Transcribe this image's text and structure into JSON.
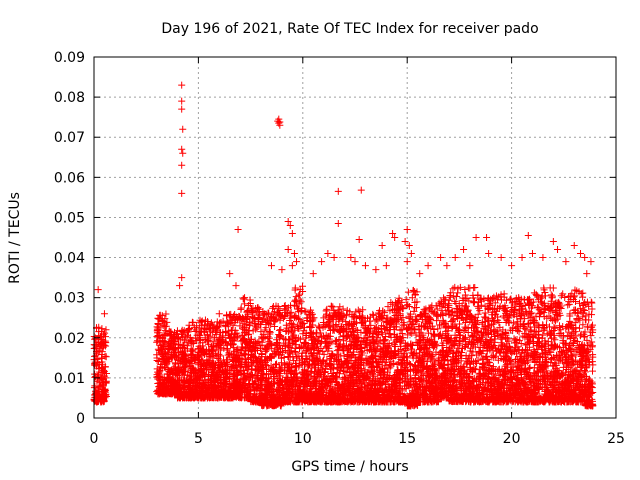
{
  "chart_data": {
    "type": "scatter",
    "title": "Day 196 of 2021, Rate Of TEC Index for receiver pado",
    "xlabel": "GPS time / hours",
    "ylabel": "ROTI / TECUs",
    "xlim": [
      0,
      25
    ],
    "ylim": [
      0,
      0.09
    ],
    "xticks": [
      0,
      5,
      10,
      15,
      20,
      25
    ],
    "xtick_labels": [
      "0",
      "5",
      "10",
      "15",
      "20",
      "25"
    ],
    "yticks": [
      0,
      0.01,
      0.02,
      0.03,
      0.04,
      0.05,
      0.06,
      0.07,
      0.08,
      0.09
    ],
    "ytick_labels": [
      "0",
      "0.01",
      "0.02",
      "0.03",
      "0.04",
      "0.05",
      "0.06",
      "0.07",
      "0.08",
      "0.09"
    ],
    "grid": true,
    "marker": "plus",
    "color": "#ff0000",
    "x_bins": [
      0,
      0.5,
      1,
      1.5,
      2,
      2.5,
      3,
      3.5,
      4,
      4.5,
      5,
      5.5,
      6,
      6.5,
      7,
      7.5,
      8,
      8.5,
      9,
      9.5,
      10,
      10.5,
      11,
      11.5,
      12,
      12.5,
      13,
      13.5,
      14,
      14.5,
      15,
      15.5,
      16,
      16.5,
      17,
      17.5,
      18,
      18.5,
      19,
      19.5,
      20,
      20.5,
      21,
      21.5,
      22,
      22.5,
      23,
      23.5,
      24
    ],
    "dense_band_low": [
      0.004,
      0.005,
      null,
      null,
      null,
      null,
      0.006,
      0.006,
      0.005,
      0.005,
      0.005,
      0.005,
      0.005,
      0.005,
      0.005,
      0.004,
      0.003,
      0.003,
      0.004,
      0.004,
      0.004,
      0.004,
      0.004,
      0.004,
      0.004,
      0.004,
      0.004,
      0.004,
      0.004,
      0.004,
      0.003,
      0.004,
      0.004,
      0.005,
      0.004,
      0.004,
      0.004,
      0.004,
      0.004,
      0.004,
      0.004,
      0.004,
      0.004,
      0.004,
      0.004,
      0.004,
      0.004,
      0.003,
      0.004
    ],
    "dense_band_high": [
      0.023,
      0.022,
      null,
      null,
      null,
      null,
      0.026,
      0.022,
      0.022,
      0.024,
      0.025,
      0.024,
      0.026,
      0.026,
      0.03,
      0.028,
      0.027,
      0.028,
      0.029,
      0.033,
      0.027,
      0.025,
      0.028,
      0.028,
      0.027,
      0.027,
      0.026,
      0.028,
      0.029,
      0.03,
      0.032,
      0.028,
      0.028,
      0.03,
      0.033,
      0.033,
      0.033,
      0.03,
      0.031,
      0.031,
      0.03,
      0.03,
      0.032,
      0.033,
      0.031,
      0.031,
      0.032,
      0.029,
      0.027
    ],
    "sparse_points": [
      [
        0.2,
        0.032
      ],
      [
        0.5,
        0.026
      ],
      [
        4.2,
        0.083
      ],
      [
        4.2,
        0.079
      ],
      [
        4.2,
        0.077
      ],
      [
        4.25,
        0.072
      ],
      [
        4.2,
        0.067
      ],
      [
        4.25,
        0.066
      ],
      [
        4.2,
        0.063
      ],
      [
        4.2,
        0.056
      ],
      [
        4.1,
        0.033
      ],
      [
        4.2,
        0.035
      ],
      [
        6.0,
        0.026
      ],
      [
        6.5,
        0.036
      ],
      [
        6.8,
        0.033
      ],
      [
        6.9,
        0.047
      ],
      [
        8.85,
        0.0745
      ],
      [
        8.9,
        0.0738
      ],
      [
        8.8,
        0.074
      ],
      [
        8.9,
        0.073
      ],
      [
        8.85,
        0.0735
      ],
      [
        8.5,
        0.038
      ],
      [
        9.0,
        0.037
      ],
      [
        9.3,
        0.049
      ],
      [
        9.4,
        0.048
      ],
      [
        9.5,
        0.046
      ],
      [
        9.6,
        0.041
      ],
      [
        9.7,
        0.039
      ],
      [
        9.3,
        0.042
      ],
      [
        9.5,
        0.038
      ],
      [
        10.5,
        0.036
      ],
      [
        10.9,
        0.039
      ],
      [
        11.2,
        0.041
      ],
      [
        11.5,
        0.04
      ],
      [
        11.7,
        0.0485
      ],
      [
        11.7,
        0.0565
      ],
      [
        12.3,
        0.04
      ],
      [
        12.5,
        0.039
      ],
      [
        12.7,
        0.0445
      ],
      [
        12.8,
        0.0568
      ],
      [
        13.0,
        0.038
      ],
      [
        13.5,
        0.037
      ],
      [
        13.8,
        0.043
      ],
      [
        14.0,
        0.038
      ],
      [
        14.3,
        0.046
      ],
      [
        14.4,
        0.045
      ],
      [
        14.9,
        0.044
      ],
      [
        15.0,
        0.047
      ],
      [
        15.1,
        0.043
      ],
      [
        15.2,
        0.041
      ],
      [
        15.0,
        0.039
      ],
      [
        15.6,
        0.036
      ],
      [
        16.0,
        0.038
      ],
      [
        16.6,
        0.04
      ],
      [
        16.9,
        0.038
      ],
      [
        17.3,
        0.04
      ],
      [
        17.7,
        0.042
      ],
      [
        18.0,
        0.038
      ],
      [
        18.3,
        0.045
      ],
      [
        18.8,
        0.045
      ],
      [
        18.9,
        0.041
      ],
      [
        19.5,
        0.04
      ],
      [
        20.0,
        0.038
      ],
      [
        20.5,
        0.04
      ],
      [
        20.8,
        0.0455
      ],
      [
        21.0,
        0.041
      ],
      [
        21.5,
        0.04
      ],
      [
        22.0,
        0.044
      ],
      [
        22.2,
        0.042
      ],
      [
        22.6,
        0.039
      ],
      [
        23.0,
        0.043
      ],
      [
        23.3,
        0.041
      ],
      [
        23.5,
        0.04
      ],
      [
        23.8,
        0.039
      ],
      [
        23.6,
        0.036
      ]
    ]
  }
}
